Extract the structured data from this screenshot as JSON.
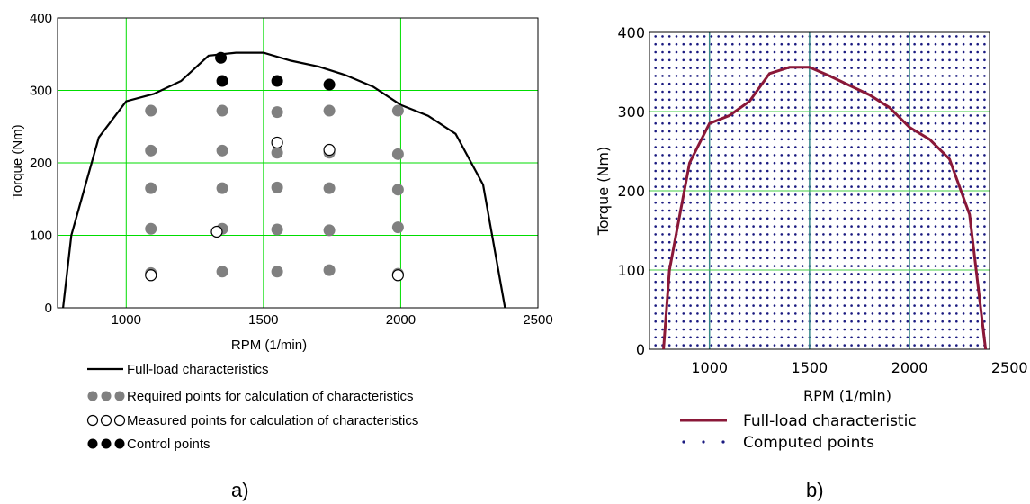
{
  "colors": {
    "grid_a": "#00dd00",
    "grid_b_vertical": "#3a8a8a",
    "grid_b_horizontal": "#44cc44",
    "curve_a": "#000000",
    "curve_b": "#8a1838",
    "required_points": "#808080",
    "control_points": "#000000",
    "computed_points": "#1a1a80"
  },
  "chart_data": [
    {
      "panel_label": "a)",
      "type": "line",
      "xlabel": "RPM (1/min)",
      "ylabel": "Torque (Nm)",
      "xlim": [
        750,
        2500
      ],
      "ylim": [
        0,
        400
      ],
      "x_ticks": [
        "1000",
        "1500",
        "2000",
        "2500"
      ],
      "y_ticks": [
        "0",
        "100",
        "200",
        "300",
        "400"
      ],
      "grid": true,
      "legend_placement": "below",
      "legend": [
        {
          "symbol": "line",
          "label": "Full-load characteristics"
        },
        {
          "symbol": "grey-dots",
          "label": "Required points for calculation of characteristics"
        },
        {
          "symbol": "open-dots",
          "label": "Measured points for calculation of characteristics"
        },
        {
          "symbol": "black-dots",
          "label": "Control points"
        }
      ],
      "full_load_curve": {
        "x": [
          770,
          800,
          900,
          1000,
          1100,
          1200,
          1300,
          1400,
          1500,
          1600,
          1700,
          1800,
          1900,
          2000,
          2100,
          2200,
          2300,
          2380
        ],
        "y": [
          0,
          100,
          235,
          285,
          295,
          313,
          348,
          352,
          352,
          341,
          333,
          321,
          305,
          280,
          265,
          240,
          170,
          0
        ]
      },
      "required_points": {
        "x": [
          1090,
          1090,
          1090,
          1090,
          1090,
          1350,
          1350,
          1350,
          1350,
          1350,
          1550,
          1550,
          1550,
          1550,
          1550,
          1740,
          1740,
          1740,
          1740,
          1740,
          1990,
          1990,
          1990,
          1990,
          1990
        ],
        "y": [
          272,
          217,
          165,
          109,
          48,
          272,
          217,
          165,
          109,
          50,
          270,
          214,
          166,
          108,
          50,
          272,
          214,
          165,
          107,
          52,
          272,
          212,
          163,
          111,
          47
        ]
      },
      "measured_points": {
        "x": [
          1090,
          1330,
          1550,
          1740,
          1990
        ],
        "y": [
          45,
          105,
          228,
          218,
          45
        ]
      },
      "control_points": {
        "x": [
          1345,
          1350,
          1550,
          1740
        ],
        "y": [
          345,
          313,
          313,
          308
        ]
      }
    },
    {
      "panel_label": "b)",
      "type": "line",
      "xlabel": "RPM (1/min)",
      "ylabel": "Torque (Nm)",
      "xlim": [
        700,
        2400
      ],
      "ylim": [
        0,
        400
      ],
      "x_ticks": [
        "1000",
        "1500",
        "2000",
        "2500"
      ],
      "y_ticks": [
        "0",
        "100",
        "200",
        "300",
        "400"
      ],
      "grid": true,
      "legend_placement": "below",
      "legend": [
        {
          "symbol": "line",
          "label": "Full-load characteristic"
        },
        {
          "symbol": "dots",
          "label": "Computed points"
        }
      ],
      "full_load_curve": {
        "x": [
          770,
          800,
          900,
          1000,
          1100,
          1200,
          1300,
          1400,
          1500,
          1600,
          1700,
          1800,
          1900,
          2000,
          2100,
          2200,
          2300,
          2380
        ],
        "y": [
          0,
          100,
          235,
          285,
          295,
          313,
          348,
          356,
          356,
          345,
          333,
          321,
          305,
          280,
          265,
          240,
          170,
          0
        ]
      },
      "computed_points": {
        "x_start": 730,
        "x_step": 35,
        "x_count": 48,
        "y_start": 5,
        "y_step": 10,
        "y_count": 40
      }
    }
  ]
}
